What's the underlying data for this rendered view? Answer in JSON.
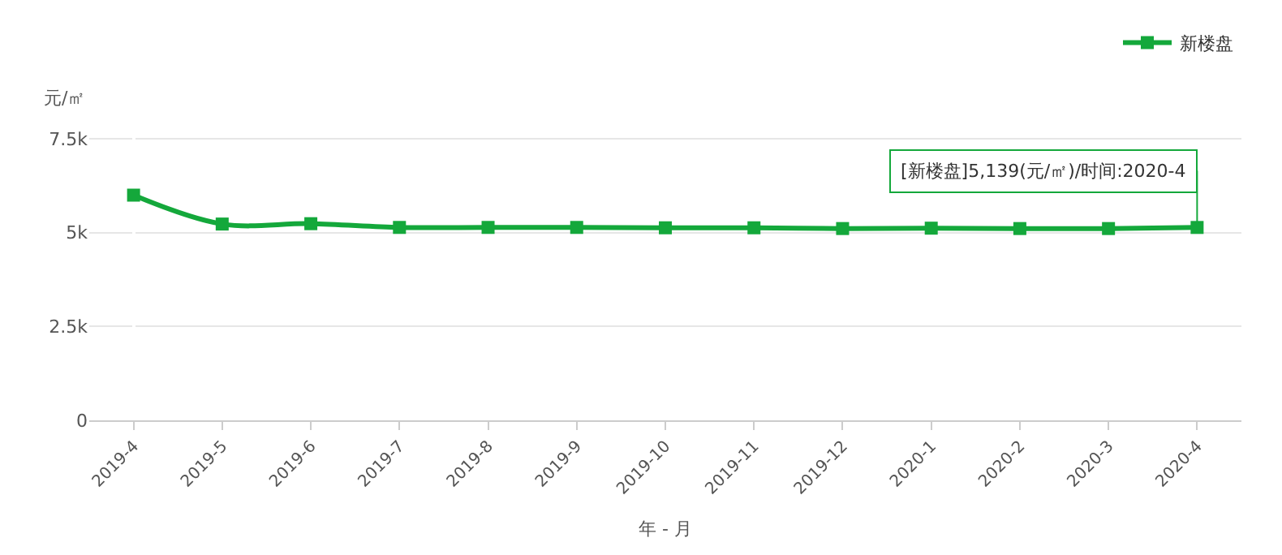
{
  "chart_data": {
    "type": "line",
    "ylabel": "元/㎡",
    "xlabel": "年 - 月",
    "categories": [
      "2019-4",
      "2019-5",
      "2019-6",
      "2019-7",
      "2019-8",
      "2019-9",
      "2019-10",
      "2019-11",
      "2019-12",
      "2020-1",
      "2020-2",
      "2020-3",
      "2020-4"
    ],
    "series": [
      {
        "name": "新楼盘",
        "color": "#14a83b",
        "values": [
          6000,
          5230,
          5240,
          5140,
          5140,
          5140,
          5130,
          5130,
          5110,
          5120,
          5110,
          5110,
          5139
        ]
      }
    ],
    "ylim": [
      0,
      8000
    ],
    "yticks": [
      {
        "value": 0,
        "label": "0"
      },
      {
        "value": 2500,
        "label": "2.5k"
      },
      {
        "value": 5000,
        "label": "5k"
      },
      {
        "value": 7500,
        "label": "7.5k"
      }
    ],
    "annotations": [
      {
        "text": "[新楼盘]5,139(元/㎡)/时间:2020-4",
        "x": "2020-4",
        "y": 5139
      }
    ],
    "grid": "y",
    "legend": "top right",
    "marker": "square",
    "line_style": "solid"
  }
}
